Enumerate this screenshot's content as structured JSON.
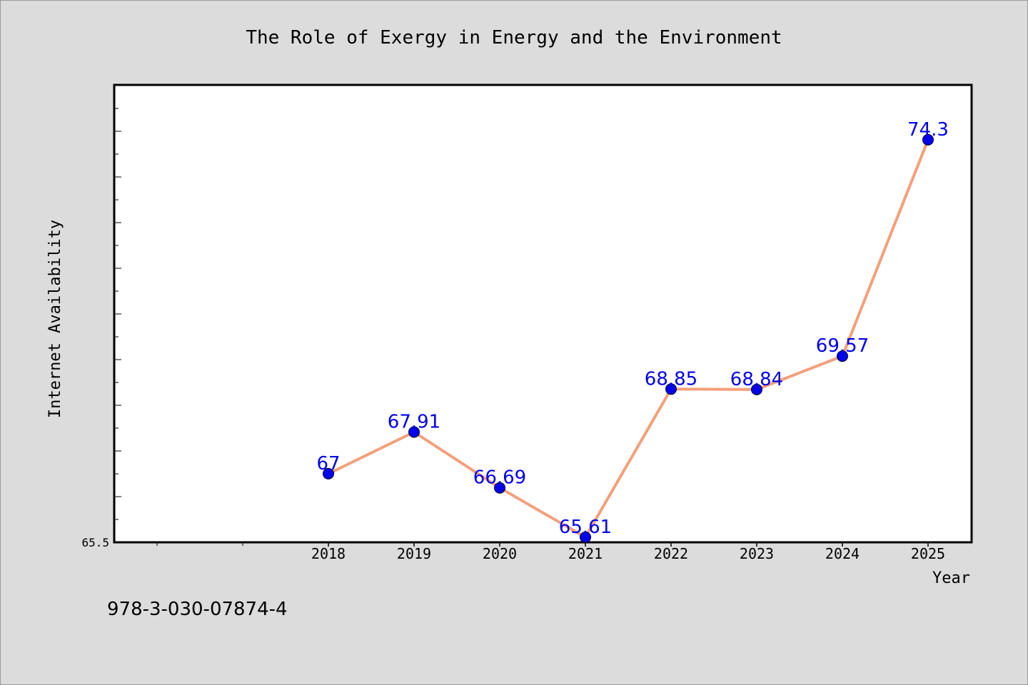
{
  "chart_data": {
    "type": "line",
    "title": "The Role of Exergy in Energy and the Environment",
    "xlabel": "Year",
    "ylabel": "Internet Availability",
    "categories": [
      "2018",
      "2019",
      "2020",
      "2021",
      "2022",
      "2023",
      "2024",
      "2025"
    ],
    "series": [
      {
        "values": [
          67,
          67.91,
          66.69,
          65.61,
          68.85,
          68.84,
          69.57,
          74.3
        ],
        "labels": [
          "67",
          "67.91",
          "66.69",
          "65.61",
          "68.85",
          "68.84",
          "69.57",
          "74.3"
        ]
      }
    ],
    "ylim": [
      65.5,
      75.5
    ],
    "ytick_labels": [
      "65.5"
    ],
    "grid": false,
    "colors": {
      "line": "#f4a07a",
      "marker": "#0000ee",
      "label": "#0000ee"
    }
  },
  "footer": {
    "isbn": "978-3-030-07874-4"
  }
}
